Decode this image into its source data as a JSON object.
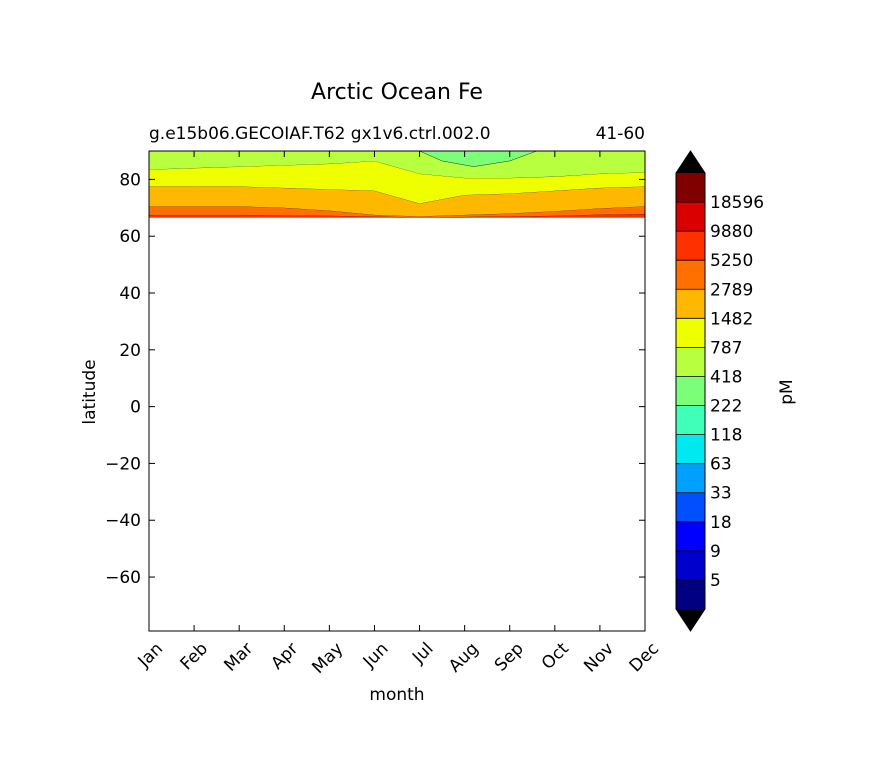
{
  "chart_data": {
    "type": "filled-contour",
    "title": "Arctic Ocean Fe",
    "subtitle_left": "g.e15b06.GECOIAF.T62 gx1v6.ctrl.002.0",
    "subtitle_right": "41-60",
    "xlabel": "month",
    "ylabel": "latitude",
    "x_categories": [
      "Jan",
      "Feb",
      "Mar",
      "Apr",
      "May",
      "Jun",
      "Jul",
      "Aug",
      "Sep",
      "Oct",
      "Nov",
      "Dec"
    ],
    "yticks": [
      80,
      60,
      40,
      20,
      0,
      -20,
      -40,
      -60
    ],
    "ylim": [
      -79,
      90
    ],
    "data_lat_min": 66.5,
    "colorbar": {
      "label": "pM",
      "levels": [
        5,
        9,
        18,
        33,
        63,
        118,
        222,
        418,
        787,
        1482,
        2789,
        5250,
        9880,
        18596
      ],
      "tick_labels": [
        "5",
        "9",
        "18",
        "33",
        "63",
        "118",
        "222",
        "418",
        "787",
        "1482",
        "2789",
        "5250",
        "9880",
        "18596"
      ],
      "colors": [
        "#000080",
        "#0000cd",
        "#0000ff",
        "#0050ff",
        "#00a0ff",
        "#00e8f0",
        "#40ffb8",
        "#7cff78",
        "#b8ff40",
        "#f0ff00",
        "#ffb800",
        "#ff7000",
        "#ff3000",
        "#d80000",
        "#800000"
      ],
      "extend_color": "#000000"
    },
    "bands": [
      {
        "range": "5250-9880",
        "color": "#ff3000",
        "lat_top": [
          67.5,
          67.5,
          67.5,
          67.4,
          67.2,
          67.0,
          66.6,
          66.8,
          67.0,
          67.2,
          67.6,
          67.8
        ],
        "lat_bottom": [
          66.5,
          66.5,
          66.5,
          66.5,
          66.5,
          66.5,
          66.5,
          66.5,
          66.5,
          66.5,
          66.5,
          66.5
        ]
      },
      {
        "range": "2789-5250",
        "color": "#ff7000",
        "lat_top": [
          70.5,
          70.5,
          70.5,
          70.0,
          69.0,
          67.5,
          67.0,
          67.5,
          68.0,
          68.8,
          69.8,
          70.5
        ]
      },
      {
        "range": "1482-2789",
        "color": "#ffb800",
        "lat_top": [
          77.5,
          77.5,
          77.5,
          77.0,
          76.5,
          76.0,
          71.5,
          74.5,
          75.0,
          76.0,
          77.0,
          77.5
        ]
      },
      {
        "range": "787-1482",
        "color": "#f0ff00",
        "lat_top": [
          83.5,
          84.0,
          84.5,
          85.0,
          85.5,
          86.5,
          82.0,
          80.5,
          80.5,
          81.0,
          82.0,
          82.5
        ]
      },
      {
        "range": "418-787",
        "color": "#b8ff40",
        "lat_top": [
          90,
          90,
          90,
          90,
          90,
          90,
          90,
          90,
          90,
          90,
          90,
          90
        ]
      },
      {
        "range": "222-418",
        "color": "#7cff78",
        "shape": "polygon",
        "points": [
          [
            6.0,
            90
          ],
          [
            6.5,
            86.5
          ],
          [
            7.2,
            84.5
          ],
          [
            8.0,
            86.5
          ],
          [
            8.6,
            90
          ]
        ]
      }
    ]
  }
}
